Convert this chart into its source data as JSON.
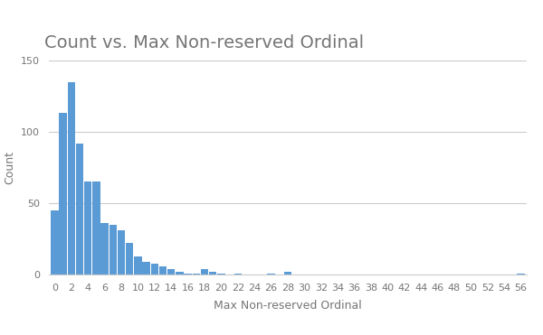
{
  "title": "Count vs. Max Non-reserved Ordinal",
  "xlabel": "Max Non-reserved Ordinal",
  "ylabel": "Count",
  "bar_color": "#5B9BD5",
  "background_color": "#ffffff",
  "ylim": [
    0,
    150
  ],
  "yticks": [
    0,
    50,
    100,
    150
  ],
  "x_tick_step": 2,
  "values": [
    45,
    113,
    135,
    92,
    65,
    65,
    36,
    35,
    31,
    22,
    13,
    9,
    8,
    6,
    4,
    2,
    1,
    1,
    4,
    2,
    1,
    0,
    1,
    0,
    0,
    0,
    1,
    0,
    2,
    0,
    0,
    0,
    0,
    0,
    0,
    0,
    0,
    0,
    0,
    0,
    0,
    0,
    0,
    0,
    0,
    0,
    0,
    0,
    0,
    0,
    0,
    0,
    0,
    0,
    0,
    0,
    1
  ],
  "title_fontsize": 14,
  "axis_fontsize": 9,
  "tick_fontsize": 8,
  "title_color": "#757575",
  "axis_label_color": "#757575",
  "tick_color": "#757575",
  "grid_color": "#cccccc",
  "grid_linewidth": 0.8,
  "bar_width": 0.9
}
